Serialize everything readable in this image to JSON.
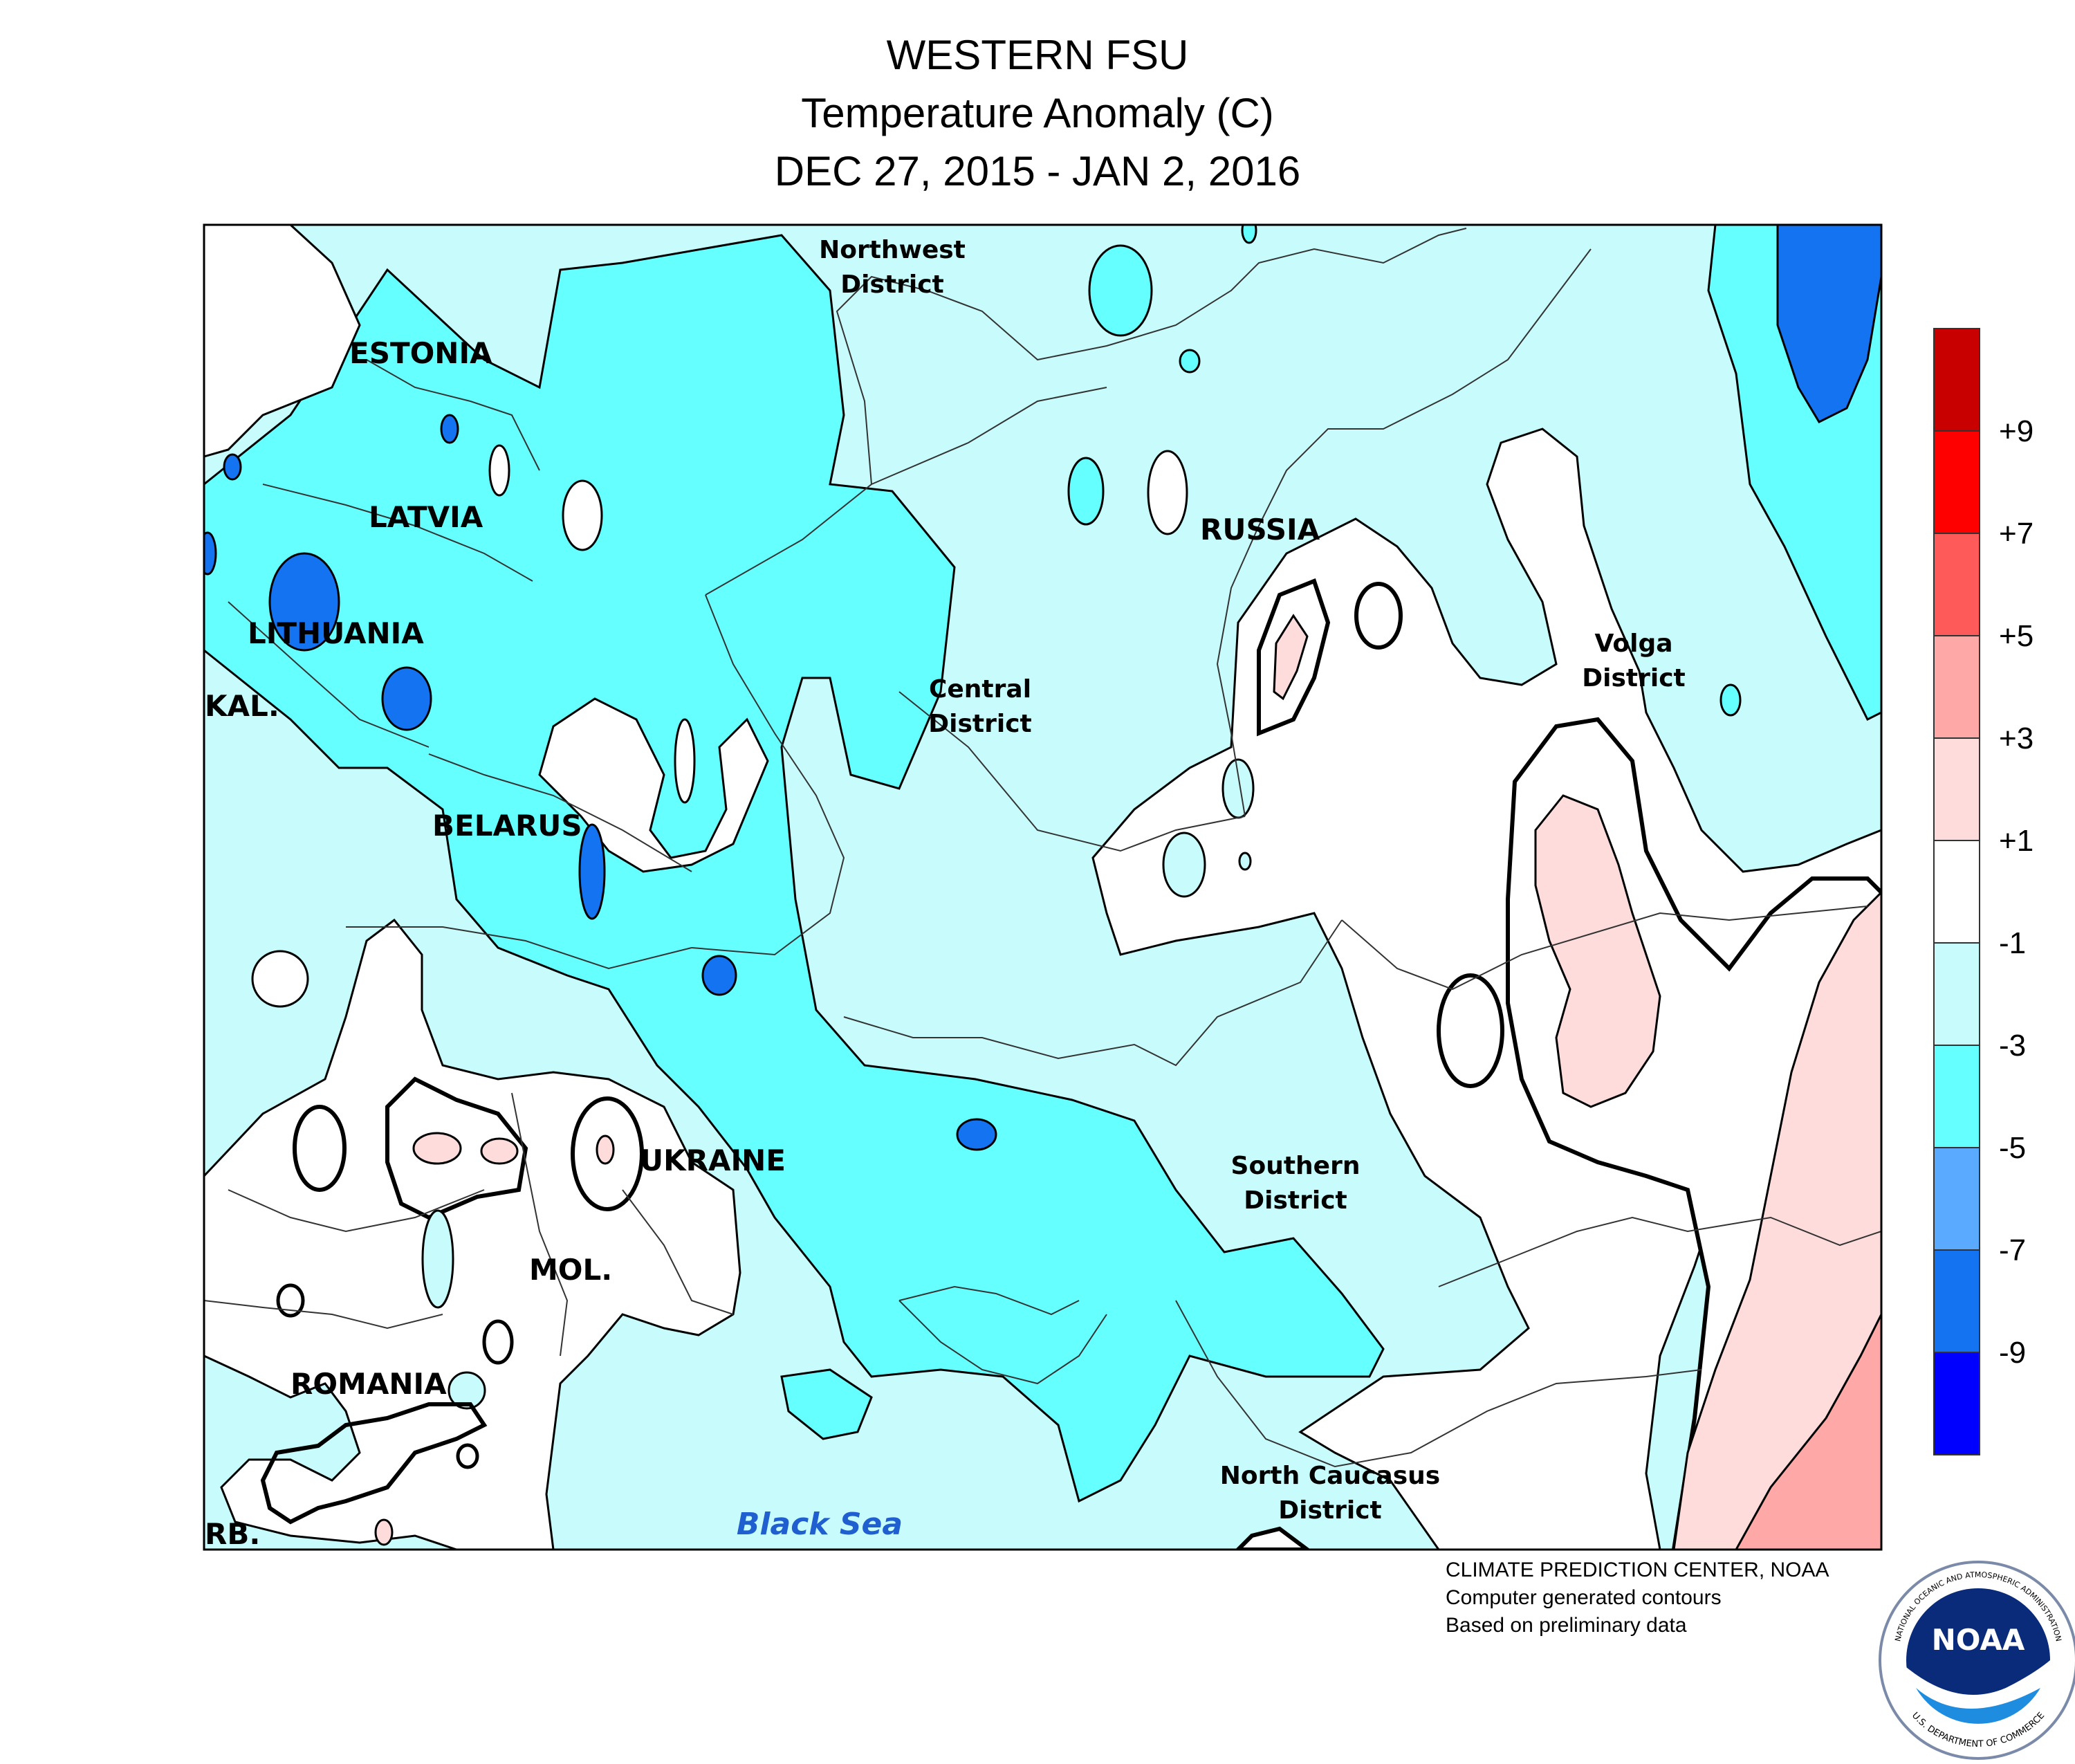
{
  "title": {
    "line1": "WESTERN FSU",
    "line2": "Temperature Anomaly (C)",
    "line3": "DEC 27, 2015 - JAN 2, 2016"
  },
  "map_labels": {
    "estonia": "ESTONIA",
    "latvia": "LATVIA",
    "lithuania": "LITHUANIA",
    "kal": "KAL.",
    "belarus": "BELARUS",
    "ukraine": "UKRAINE",
    "mol": "MOL.",
    "romania": "ROMANIA",
    "srb": "RB.",
    "russia": "RUSSIA",
    "northwest_1": "Northwest",
    "northwest_2": "District",
    "central_1": "Central",
    "central_2": "District",
    "volga_1": "Volga",
    "volga_2": "District",
    "southern_1": "Southern",
    "southern_2": "District",
    "ncaucasus_1": "North Caucasus",
    "ncaucasus_2": "District",
    "black_sea": "Black Sea"
  },
  "legend": {
    "labels": [
      "+9",
      "+7",
      "+5",
      "+3",
      "+1",
      "-1",
      "-3",
      "-5",
      "-7",
      "-9"
    ],
    "colors": [
      "#c80000",
      "#ff0000",
      "#ff5a5a",
      "#ffa8a8",
      "#ffdcdc",
      "#ffffff",
      "#c8fcfc",
      "#66ffff",
      "#5aaaff",
      "#1473f0",
      "#0000ff"
    ]
  },
  "palette": {
    "cold_3_5": "#66ffff",
    "cold_1_3": "#c8fcfc",
    "neutral": "#ffffff",
    "warm_1_3": "#ffdcdc",
    "warm_3_5": "#ffa8a8",
    "cold_7_9": "#1473f0"
  },
  "credits": {
    "line1": "CLIMATE PREDICTION CENTER, NOAA",
    "line2": "Computer generated contours",
    "line3": "Based on preliminary data"
  },
  "logo": {
    "text": "NOAA",
    "ring_top": "NATIONAL OCEANIC AND ATMOSPHERIC ADMINISTRATION",
    "ring_bottom": "U.S. DEPARTMENT OF COMMERCE"
  }
}
